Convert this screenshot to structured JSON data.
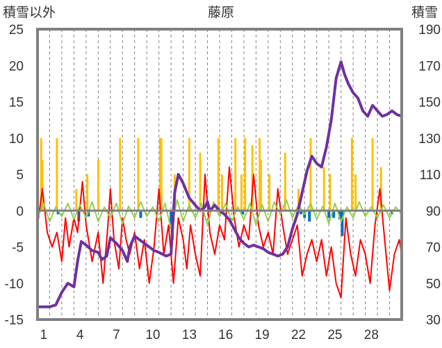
{
  "chart_data": {
    "type": "line",
    "title": "藤原",
    "left_axis_label": "積雪以外",
    "right_axis_label": "積雪",
    "left_ylim": [
      -15,
      25
    ],
    "left_ticks": [
      "25",
      "20",
      "15",
      "10",
      "5",
      "0",
      "-5",
      "-10",
      "-15"
    ],
    "right_ylim": [
      30,
      190
    ],
    "right_ticks": [
      "190",
      "170",
      "150",
      "130",
      "110",
      "90",
      "70",
      "50",
      "30"
    ],
    "xlim": [
      0,
      30
    ],
    "x_tick_labels": [
      {
        "day": 1,
        "label": "1"
      },
      {
        "day": 4,
        "label": "4"
      },
      {
        "day": 7,
        "label": "7"
      },
      {
        "day": 10,
        "label": "10"
      },
      {
        "day": 13,
        "label": "13"
      },
      {
        "day": 16,
        "label": "16"
      },
      {
        "day": 19,
        "label": "19"
      },
      {
        "day": 22,
        "label": "22"
      },
      {
        "day": 25,
        "label": "25"
      },
      {
        "day": 28,
        "label": "28"
      }
    ],
    "grid": "vertical dashed daily",
    "colors": {
      "snowfall": "#ffc000",
      "precipitation": "#0070c0",
      "temperature": "#ff0000",
      "temp_change": "#92d050",
      "snow_depth": "#7030a0",
      "frame": "#808080"
    },
    "series": [
      {
        "key": "temperature",
        "axis": "left",
        "x": [
          0,
          0.4,
          0.8,
          1.2,
          1.6,
          2.0,
          2.3,
          2.6,
          3.0,
          3.3,
          3.7,
          4.0,
          4.5,
          5.0,
          5.4,
          5.8,
          6.0,
          6.3,
          6.7,
          7.0,
          7.3,
          7.6,
          8.0,
          8.4,
          8.8,
          9.2,
          9.6,
          10.0,
          10.4,
          10.8,
          11.2,
          11.6,
          12.0,
          12.3,
          12.6,
          13.0,
          13.4,
          13.8,
          14.2,
          14.6,
          15.0,
          15.4,
          15.8,
          16.2,
          16.6,
          17.0,
          17.4,
          17.8,
          18.2,
          18.6,
          19.0,
          19.4,
          19.8,
          20.2,
          20.6,
          21.0,
          21.4,
          21.8,
          22.2,
          22.6,
          23.0,
          23.4,
          23.8,
          24.2,
          24.6,
          25.0,
          25.4,
          25.8,
          26.2,
          26.6,
          27.0,
          27.4,
          27.8,
          28.2,
          28.6,
          29.0,
          29.4,
          29.8,
          30.0
        ],
        "y": [
          -2,
          3,
          -3,
          -5,
          -3,
          -7,
          -1,
          -5,
          -1,
          -3,
          4,
          -2,
          -7,
          -3,
          -10,
          -2,
          3,
          -4,
          -8,
          -1,
          -4,
          -6,
          -3,
          -8,
          -4,
          -10,
          -5,
          3,
          -6,
          -2,
          -10,
          -1,
          -4,
          -8,
          -2,
          -6,
          -9,
          5,
          -3,
          -6,
          -2,
          -4,
          6,
          -1,
          -5,
          -2,
          -4,
          5,
          -2,
          -5,
          -3,
          -6,
          3,
          -2,
          -6,
          -4,
          -2,
          -9,
          -6,
          -4,
          -7,
          -4,
          -9,
          -5,
          -10,
          -12,
          -1,
          -6,
          -9,
          -4,
          -6,
          -10,
          -2,
          3,
          -4,
          -11,
          -6,
          -4,
          -6
        ]
      },
      {
        "key": "temp_change",
        "axis": "left",
        "x": [
          0,
          0.5,
          1,
          1.5,
          2,
          2.5,
          3,
          3.5,
          4,
          4.5,
          5,
          5.5,
          6,
          6.5,
          7,
          7.5,
          8,
          8.5,
          9,
          9.5,
          10,
          10.5,
          11,
          11.5,
          12,
          12.5,
          13,
          13.5,
          14,
          14.5,
          15,
          15.5,
          16,
          16.5,
          17,
          17.5,
          18,
          18.5,
          19,
          19.5,
          20,
          20.5,
          21,
          21.5,
          22,
          22.5,
          23,
          23.5,
          24,
          24.5,
          25,
          25.5,
          26,
          26.5,
          27,
          27.5,
          28,
          28.5,
          29,
          29.5,
          30
        ],
        "y": [
          -1,
          1,
          -1.5,
          0.5,
          -0.8,
          1,
          -1.2,
          0.8,
          -1,
          1.2,
          -1.5,
          0.5,
          -1,
          1,
          -1.8,
          0.6,
          -1,
          1.2,
          -0.8,
          0.5,
          -1.5,
          1,
          -2.5,
          1.5,
          -1.5,
          0.8,
          -1,
          1,
          -2,
          1.2,
          -0.8,
          1,
          -1.5,
          0.5,
          -1.2,
          1,
          -2,
          0.8,
          -1.5,
          1.2,
          -0.5,
          1.5,
          -1,
          0.8,
          -0.5,
          1,
          -1.2,
          0.6,
          -1.8,
          1,
          -1.5,
          0.5,
          -1,
          1.2,
          -0.8,
          0.5,
          -1,
          0.8,
          -1,
          0.5,
          -0.5
        ]
      },
      {
        "key": "snow_depth",
        "axis": "right",
        "x": [
          0,
          1.0,
          1.5,
          2.0,
          2.5,
          3.0,
          3.3,
          3.6,
          4.0,
          4.5,
          5.0,
          5.3,
          5.7,
          6.0,
          6.5,
          7.0,
          7.4,
          7.6,
          8.0,
          8.4,
          8.8,
          9.2,
          9.6,
          10.0,
          10.6,
          11.0,
          11.3,
          11.6,
          12.0,
          12.5,
          13.0,
          13.4,
          13.8,
          14.0,
          14.2,
          14.6,
          15.0,
          15.4,
          15.8,
          16.2,
          16.6,
          17.0,
          17.4,
          17.8,
          18.2,
          18.6,
          19.0,
          19.4,
          19.8,
          20.2,
          20.6,
          21.0,
          21.4,
          21.8,
          22.2,
          22.6,
          23.0,
          23.4,
          23.8,
          24.2,
          24.6,
          25.0,
          25.3,
          25.6,
          26.0,
          26.4,
          26.8,
          27.2,
          27.6,
          28.0,
          28.4,
          28.8,
          29.2,
          29.6,
          30.0
        ],
        "y": [
          37,
          37,
          38,
          45,
          50,
          48,
          62,
          73,
          71,
          68,
          67,
          63,
          65,
          75,
          72,
          68,
          62,
          70,
          76,
          74,
          72,
          70,
          68,
          67,
          65,
          66,
          100,
          110,
          105,
          97,
          93,
          90,
          92,
          95,
          90,
          93,
          90,
          88,
          85,
          80,
          75,
          72,
          70,
          71,
          70,
          69,
          67,
          66,
          65,
          66,
          70,
          80,
          88,
          100,
          112,
          120,
          116,
          114,
          125,
          140,
          163,
          172,
          165,
          160,
          155,
          152,
          145,
          142,
          148,
          145,
          142,
          143,
          145,
          143,
          142
        ]
      }
    ],
    "bars": [
      {
        "key": "snowfall",
        "axis": "left",
        "x": [
          0.3,
          0.4,
          1.6,
          3.2,
          4.1,
          5.0,
          6.8,
          8.3,
          10.1,
          10.2,
          11.3,
          12.5,
          13.4,
          14.9,
          15.2,
          16.3,
          16.8,
          17.1,
          17.7,
          18.3,
          18.4,
          19.1,
          20.4,
          21.5,
          22.5,
          23.6,
          24.1,
          25.9,
          26.2,
          27.6,
          28.3
        ],
        "values": [
          10,
          7,
          10,
          3,
          5,
          7,
          10,
          10,
          10,
          10,
          5,
          10,
          8,
          10,
          5,
          10,
          5,
          10,
          9,
          10,
          7,
          5,
          8,
          3,
          10,
          6,
          5,
          10,
          5,
          10,
          6
        ]
      },
      {
        "key": "precipitation",
        "axis": "left",
        "x": [
          1.7,
          3.4,
          4.2,
          8.5,
          11.0,
          11.1,
          16.9,
          21.7,
          22.0,
          22.4,
          24.0,
          24.4,
          24.9,
          25.1,
          29.2
        ],
        "values": [
          -0.5,
          -1.5,
          -0.8,
          -1,
          -2.5,
          -4,
          -0.5,
          -0.5,
          -1,
          -1.5,
          -1,
          -1,
          -1.2,
          -3.5,
          -0.5
        ]
      }
    ]
  }
}
